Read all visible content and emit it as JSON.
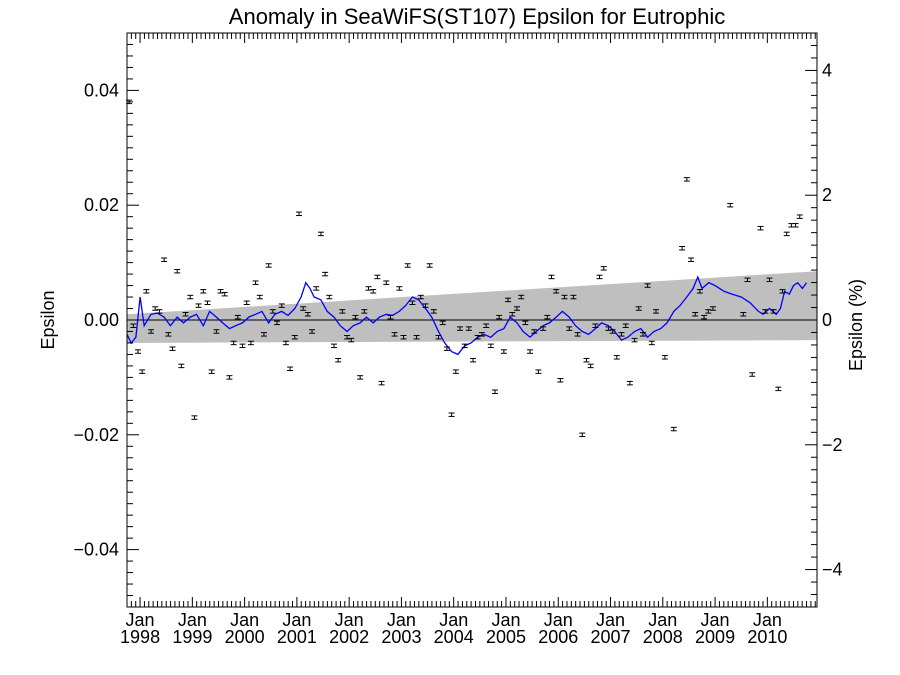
{
  "chart_data": {
    "type": "scatter",
    "title": "Anomaly in SeaWiFS(ST107) Epsilon for Eutrophic",
    "ylabel": "Epsilon",
    "ylabel_right": "Epsilon (%)",
    "xlim": [
      1997.75,
      2010.95
    ],
    "ylim": [
      -0.05,
      0.05
    ],
    "ylim_right": [
      -4.6,
      4.6
    ],
    "x_ticks": [
      {
        "x": 1998,
        "top": "Jan",
        "bottom": "1998"
      },
      {
        "x": 1999,
        "top": "Jan",
        "bottom": "1999"
      },
      {
        "x": 2000,
        "top": "Jan",
        "bottom": "2000"
      },
      {
        "x": 2001,
        "top": "Jan",
        "bottom": "2001"
      },
      {
        "x": 2002,
        "top": "Jan",
        "bottom": "2002"
      },
      {
        "x": 2003,
        "top": "Jan",
        "bottom": "2003"
      },
      {
        "x": 2004,
        "top": "Jan",
        "bottom": "2004"
      },
      {
        "x": 2005,
        "top": "Jan",
        "bottom": "2005"
      },
      {
        "x": 2006,
        "top": "Jan",
        "bottom": "2006"
      },
      {
        "x": 2007,
        "top": "Jan",
        "bottom": "2007"
      },
      {
        "x": 2008,
        "top": "Jan",
        "bottom": "2008"
      },
      {
        "x": 2009,
        "top": "Jan",
        "bottom": "2009"
      },
      {
        "x": 2010,
        "top": "Jan",
        "bottom": "2010"
      }
    ],
    "y_ticks_left": [
      {
        "v": 0.04,
        "label": "0.04"
      },
      {
        "v": 0.02,
        "label": "0.02"
      },
      {
        "v": 0.0,
        "label": "0.00"
      },
      {
        "v": -0.02,
        "label": "−0.02"
      },
      {
        "v": -0.04,
        "label": "−0.04"
      }
    ],
    "y_ticks_right": [
      {
        "v": 4,
        "label": "4"
      },
      {
        "v": 2,
        "label": "2"
      },
      {
        "v": 0,
        "label": "0"
      },
      {
        "v": -2,
        "label": "−2"
      },
      {
        "v": -4,
        "label": "−4"
      }
    ],
    "grid": false,
    "error_bar_halfwidth": 0.0003,
    "points": [
      [
        1997.79,
        0.038
      ],
      [
        1997.87,
        -0.001
      ],
      [
        1997.96,
        -0.0055
      ],
      [
        1998.04,
        -0.009
      ],
      [
        1998.12,
        0.005
      ],
      [
        1998.21,
        -0.002
      ],
      [
        1998.29,
        0.002
      ],
      [
        1998.37,
        0.0015
      ],
      [
        1998.46,
        0.0105
      ],
      [
        1998.54,
        -0.0025
      ],
      [
        1998.62,
        -0.005
      ],
      [
        1998.71,
        0.0085
      ],
      [
        1998.79,
        -0.008
      ],
      [
        1998.87,
        0.001
      ],
      [
        1998.96,
        0.004
      ],
      [
        1999.04,
        -0.017
      ],
      [
        1999.12,
        0.0025
      ],
      [
        1999.21,
        0.005
      ],
      [
        1999.29,
        0.003
      ],
      [
        1999.37,
        -0.009
      ],
      [
        1999.46,
        -0.002
      ],
      [
        1999.54,
        0.005
      ],
      [
        1999.62,
        0.0045
      ],
      [
        1999.71,
        -0.01
      ],
      [
        1999.79,
        -0.004
      ],
      [
        1999.87,
        0.0005
      ],
      [
        1999.96,
        -0.0045
      ],
      [
        2000.04,
        0.003
      ],
      [
        2000.12,
        -0.004
      ],
      [
        2000.21,
        0.0065
      ],
      [
        2000.29,
        0.004
      ],
      [
        2000.37,
        -0.0025
      ],
      [
        2000.46,
        0.0095
      ],
      [
        2000.54,
        0.0015
      ],
      [
        2000.62,
        -0.0005
      ],
      [
        2000.71,
        0.0025
      ],
      [
        2000.79,
        -0.004
      ],
      [
        2000.87,
        -0.0085
      ],
      [
        2000.96,
        -0.003
      ],
      [
        2001.04,
        0.0185
      ],
      [
        2001.12,
        0.002
      ],
      [
        2001.21,
        0.001
      ],
      [
        2001.29,
        -0.002
      ],
      [
        2001.37,
        0.0055
      ],
      [
        2001.46,
        0.015
      ],
      [
        2001.54,
        0.008
      ],
      [
        2001.62,
        0.004
      ],
      [
        2001.71,
        -0.0045
      ],
      [
        2001.79,
        -0.007
      ],
      [
        2001.87,
        0.0015
      ],
      [
        2001.96,
        -0.003
      ],
      [
        2002.04,
        -0.0035
      ],
      [
        2002.12,
        0.0005
      ],
      [
        2002.21,
        -0.01
      ],
      [
        2002.29,
        0.0015
      ],
      [
        2002.37,
        0.0055
      ],
      [
        2002.46,
        0.005
      ],
      [
        2002.54,
        0.0075
      ],
      [
        2002.62,
        -0.011
      ],
      [
        2002.71,
        0.0065
      ],
      [
        2002.79,
        0.0005
      ],
      [
        2002.87,
        -0.0025
      ],
      [
        2002.96,
        0.0055
      ],
      [
        2003.04,
        -0.003
      ],
      [
        2003.12,
        0.0095
      ],
      [
        2003.21,
        0.003
      ],
      [
        2003.29,
        -0.003
      ],
      [
        2003.37,
        0.004
      ],
      [
        2003.46,
        0.0025
      ],
      [
        2003.54,
        0.0095
      ],
      [
        2003.62,
        0.0015
      ],
      [
        2003.71,
        -0.003
      ],
      [
        2003.79,
        -0.0005
      ],
      [
        2003.87,
        -0.005
      ],
      [
        2003.96,
        -0.0165
      ],
      [
        2004.04,
        -0.009
      ],
      [
        2004.12,
        -0.0015
      ],
      [
        2004.21,
        -0.0045
      ],
      [
        2004.29,
        -0.0015
      ],
      [
        2004.37,
        -0.007
      ],
      [
        2004.46,
        -0.003
      ],
      [
        2004.54,
        -0.0025
      ],
      [
        2004.62,
        -0.001
      ],
      [
        2004.71,
        -0.0045
      ],
      [
        2004.79,
        -0.0125
      ],
      [
        2004.87,
        0.0005
      ],
      [
        2004.96,
        -0.0055
      ],
      [
        2005.04,
        0.0035
      ],
      [
        2005.12,
        0.001
      ],
      [
        2005.21,
        0.002
      ],
      [
        2005.29,
        0.004
      ],
      [
        2005.37,
        -0.0005
      ],
      [
        2005.46,
        -0.0055
      ],
      [
        2005.54,
        -0.002
      ],
      [
        2005.62,
        -0.009
      ],
      [
        2005.71,
        -0.0015
      ],
      [
        2005.79,
        0.0005
      ],
      [
        2005.87,
        0.0075
      ],
      [
        2005.96,
        0.005
      ],
      [
        2006.04,
        -0.0105
      ],
      [
        2006.12,
        0.004
      ],
      [
        2006.21,
        -0.0015
      ],
      [
        2006.29,
        0.004
      ],
      [
        2006.37,
        -0.0025
      ],
      [
        2006.46,
        -0.02
      ],
      [
        2006.54,
        -0.007
      ],
      [
        2006.62,
        -0.008
      ],
      [
        2006.71,
        -0.001
      ],
      [
        2006.79,
        0.0075
      ],
      [
        2006.87,
        0.009
      ],
      [
        2006.96,
        -0.0015
      ],
      [
        2007.04,
        -0.002
      ],
      [
        2007.12,
        -0.0065
      ],
      [
        2007.21,
        -0.0025
      ],
      [
        2007.29,
        -0.001
      ],
      [
        2007.37,
        -0.011
      ],
      [
        2007.46,
        -0.0035
      ],
      [
        2007.54,
        0.002
      ],
      [
        2007.62,
        -0.0025
      ],
      [
        2007.71,
        0.006
      ],
      [
        2007.79,
        -0.004
      ],
      [
        2007.87,
        0.0015
      ],
      [
        2008.04,
        -0.0065
      ],
      [
        2008.21,
        -0.019
      ],
      [
        2008.37,
        0.0125
      ],
      [
        2008.46,
        0.0245
      ],
      [
        2008.54,
        0.0105
      ],
      [
        2008.62,
        0.001
      ],
      [
        2008.71,
        0.005
      ],
      [
        2008.79,
        0.0005
      ],
      [
        2008.87,
        0.0015
      ],
      [
        2008.96,
        0.002
      ],
      [
        2009.29,
        0.02
      ],
      [
        2009.54,
        0.001
      ],
      [
        2009.62,
        0.007
      ],
      [
        2009.71,
        -0.0095
      ],
      [
        2009.87,
        0.016
      ],
      [
        2009.96,
        0.0015
      ],
      [
        2010.04,
        0.007
      ],
      [
        2010.12,
        0.0015
      ],
      [
        2010.21,
        -0.012
      ],
      [
        2010.29,
        0.005
      ],
      [
        2010.37,
        0.015
      ],
      [
        2010.46,
        0.0165
      ],
      [
        2010.54,
        0.0165
      ],
      [
        2010.62,
        0.018
      ]
    ],
    "smoothed_line": {
      "color": "#0000ff",
      "points": [
        [
          1997.75,
          -0.0025
        ],
        [
          1997.83,
          -0.004
        ],
        [
          1997.92,
          -0.003
        ],
        [
          1998.0,
          0.004
        ],
        [
          1998.08,
          -0.001
        ],
        [
          1998.21,
          0.001
        ],
        [
          1998.33,
          0.0012
        ],
        [
          1998.46,
          0.0005
        ],
        [
          1998.58,
          -0.001
        ],
        [
          1998.71,
          0.0005
        ],
        [
          1998.83,
          -0.0005
        ],
        [
          1998.96,
          0.0005
        ],
        [
          1999.08,
          0.001
        ],
        [
          1999.21,
          -0.001
        ],
        [
          1999.33,
          0.0015
        ],
        [
          1999.46,
          0.0005
        ],
        [
          1999.58,
          -0.0005
        ],
        [
          1999.71,
          -0.0015
        ],
        [
          1999.83,
          -0.001
        ],
        [
          1999.96,
          -0.0005
        ],
        [
          2000.08,
          0.0005
        ],
        [
          2000.21,
          0.001
        ],
        [
          2000.33,
          0.0015
        ],
        [
          2000.46,
          -0.0005
        ],
        [
          2000.58,
          0.001
        ],
        [
          2000.71,
          0.0015
        ],
        [
          2000.83,
          0.0008
        ],
        [
          2000.96,
          0.002
        ],
        [
          2001.08,
          0.004
        ],
        [
          2001.17,
          0.0065
        ],
        [
          2001.25,
          0.0055
        ],
        [
          2001.33,
          0.004
        ],
        [
          2001.46,
          0.0035
        ],
        [
          2001.58,
          0.0015
        ],
        [
          2001.71,
          0.0005
        ],
        [
          2001.83,
          -0.001
        ],
        [
          2001.96,
          -0.002
        ],
        [
          2002.08,
          -0.001
        ],
        [
          2002.21,
          -0.0005
        ],
        [
          2002.33,
          0.0005
        ],
        [
          2002.46,
          -0.0005
        ],
        [
          2002.58,
          0.0005
        ],
        [
          2002.71,
          0.001
        ],
        [
          2002.83,
          0.0008
        ],
        [
          2002.96,
          0.0015
        ],
        [
          2003.08,
          0.0025
        ],
        [
          2003.21,
          0.004
        ],
        [
          2003.33,
          0.0035
        ],
        [
          2003.46,
          0.002
        ],
        [
          2003.58,
          0.0005
        ],
        [
          2003.71,
          -0.002
        ],
        [
          2003.83,
          -0.004
        ],
        [
          2003.96,
          -0.0055
        ],
        [
          2004.08,
          -0.006
        ],
        [
          2004.21,
          -0.0045
        ],
        [
          2004.33,
          -0.004
        ],
        [
          2004.46,
          -0.003
        ],
        [
          2004.58,
          -0.0025
        ],
        [
          2004.71,
          -0.003
        ],
        [
          2004.83,
          -0.002
        ],
        [
          2004.96,
          -0.0015
        ],
        [
          2005.08,
          0.0005
        ],
        [
          2005.21,
          -0.0005
        ],
        [
          2005.33,
          -0.002
        ],
        [
          2005.46,
          -0.003
        ],
        [
          2005.58,
          -0.002
        ],
        [
          2005.71,
          -0.001
        ],
        [
          2005.83,
          -0.0005
        ],
        [
          2005.96,
          0.0005
        ],
        [
          2006.08,
          0.0015
        ],
        [
          2006.21,
          0.0005
        ],
        [
          2006.33,
          -0.001
        ],
        [
          2006.46,
          -0.002
        ],
        [
          2006.58,
          -0.0025
        ],
        [
          2006.71,
          -0.0015
        ],
        [
          2006.83,
          -0.0005
        ],
        [
          2006.96,
          -0.001
        ],
        [
          2007.08,
          -0.002
        ],
        [
          2007.21,
          -0.0035
        ],
        [
          2007.33,
          -0.003
        ],
        [
          2007.46,
          -0.002
        ],
        [
          2007.58,
          -0.0015
        ],
        [
          2007.71,
          -0.003
        ],
        [
          2007.83,
          -0.002
        ],
        [
          2007.96,
          -0.0015
        ],
        [
          2008.08,
          -0.0005
        ],
        [
          2008.21,
          0.0015
        ],
        [
          2008.33,
          0.0025
        ],
        [
          2008.46,
          0.004
        ],
        [
          2008.58,
          0.0055
        ],
        [
          2008.67,
          0.0075
        ],
        [
          2008.75,
          0.0055
        ],
        [
          2008.88,
          0.0065
        ],
        [
          2009.0,
          0.006
        ],
        [
          2009.17,
          0.005
        ],
        [
          2009.33,
          0.0045
        ],
        [
          2009.5,
          0.004
        ],
        [
          2009.67,
          0.003
        ],
        [
          2009.83,
          0.0015
        ],
        [
          2009.92,
          0.001
        ],
        [
          2010.04,
          0.002
        ],
        [
          2010.17,
          0.001
        ],
        [
          2010.25,
          0.002
        ],
        [
          2010.33,
          0.005
        ],
        [
          2010.42,
          0.0045
        ],
        [
          2010.5,
          0.006
        ],
        [
          2010.58,
          0.0065
        ],
        [
          2010.67,
          0.0055
        ],
        [
          2010.75,
          0.0065
        ]
      ]
    },
    "trend_band": {
      "color": "#bfbfbf",
      "x": [
        1997.75,
        2010.95
      ],
      "upper": [
        0.001,
        0.0085
      ],
      "lower": [
        -0.004,
        -0.0035
      ]
    },
    "zero_line": 0
  }
}
